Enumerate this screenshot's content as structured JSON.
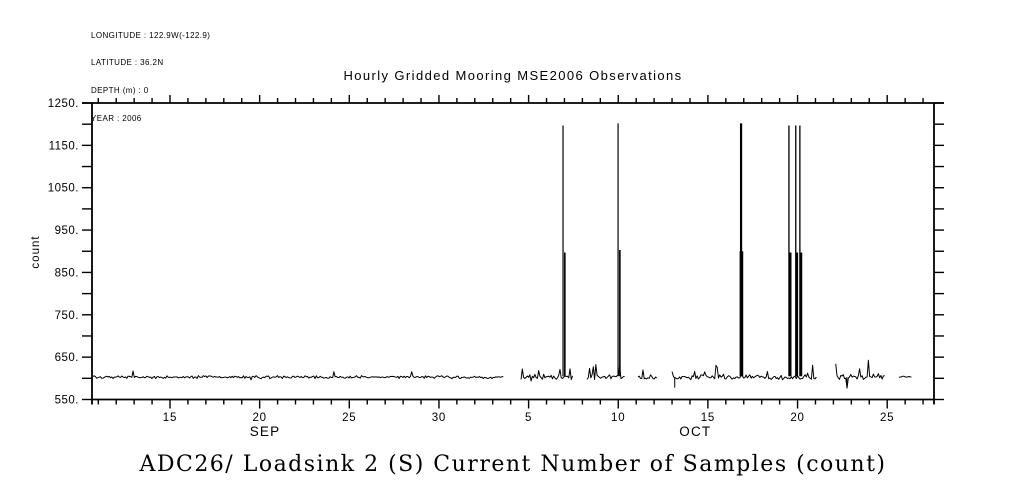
{
  "ink": "#000000",
  "background": "#ffffff",
  "metadata_block": {
    "lines": [
      "LONGITUDE : 122.9W(-122.9)",
      "LATITUDE : 36.2N",
      "DEPTH (m) : 0",
      "YEAR : 2006"
    ]
  },
  "title": "Hourly Gridded Mooring MSE2006 Observations",
  "caption": "ADC26/ Loadsink 2 (S) Current Number of Samples (count)",
  "chart_data": {
    "type": "line",
    "title": "Hourly Gridded Mooring MSE2006 Observations",
    "ylabel": "count",
    "ylim": [
      550,
      1250
    ],
    "y_minor_step": 50,
    "y_major_ticks": [
      {
        "v": 1250,
        "label": "1250."
      },
      {
        "v": 1150,
        "label": "1150."
      },
      {
        "v": 1050,
        "label": "1050."
      },
      {
        "v": 950,
        "label": "950."
      },
      {
        "v": 850,
        "label": "850."
      },
      {
        "v": 750,
        "label": "750."
      },
      {
        "v": 650,
        "label": "650."
      },
      {
        "v": 550,
        "label": "550."
      }
    ],
    "x_unit": "day (Sep 1 2006 = 1, Oct N = 30 + N)",
    "x_range_days": [
      10.65,
      57.6
    ],
    "x_minor_step": 1,
    "x_major_ticks": [
      {
        "d": 15,
        "label": "15"
      },
      {
        "d": 20,
        "label": "20"
      },
      {
        "d": 25,
        "label": "25"
      },
      {
        "d": 30,
        "label": "30"
      },
      {
        "d": 35,
        "label": "5"
      },
      {
        "d": 40,
        "label": "10"
      },
      {
        "d": 45,
        "label": "15"
      },
      {
        "d": 50,
        "label": "20"
      },
      {
        "d": 55,
        "label": "25"
      }
    ],
    "month_labels": [
      {
        "label": "SEP",
        "d": 20.3
      },
      {
        "label": "OCT",
        "d": 44.3
      }
    ],
    "baseline": 603,
    "segments": [
      {
        "d0": 10.7,
        "d1": 33.65,
        "amp": 4.5,
        "blip": 0.012,
        "blip_mag": 16
      },
      {
        "d0": 34.58,
        "d1": 37.48,
        "amp": 8,
        "blip": 0.1,
        "blip_mag": 28
      },
      {
        "d0": 38.26,
        "d1": 40.38,
        "amp": 8,
        "blip": 0.08,
        "blip_mag": 24
      },
      {
        "d0": 41.1,
        "d1": 42.16,
        "amp": 6,
        "blip": 0.16,
        "blip_mag": 26
      },
      {
        "d0": 43.0,
        "d1": 51.08,
        "amp": 7,
        "blip": 0.06,
        "blip_mag": 30
      },
      {
        "d0": 52.13,
        "d1": 54.92,
        "amp": 9,
        "blip": 0.18,
        "blip_mag": 42
      },
      {
        "d0": 55.65,
        "d1": 56.4,
        "amp": 4,
        "blip": 0.02,
        "blip_mag": 10
      }
    ],
    "spikes": [
      {
        "date": "Oct 7",
        "d": 36.92,
        "peak": 1197,
        "w": 1.2
      },
      {
        "date": "Oct 7",
        "d": 37.02,
        "peak": 897,
        "w": 1.6
      },
      {
        "date": "Oct 10",
        "d": 39.99,
        "peak": 1202,
        "w": 1.2
      },
      {
        "date": "Oct 10",
        "d": 40.09,
        "peak": 903,
        "w": 1.6
      },
      {
        "date": "Oct 17",
        "d": 46.85,
        "peak": 1202,
        "w": 2.2
      },
      {
        "date": "Oct 17",
        "d": 46.87,
        "peak": 900,
        "w": 3.6
      },
      {
        "date": "Oct 19.5",
        "d": 49.52,
        "peak": 1197,
        "w": 1.3
      },
      {
        "date": "Oct 19.5",
        "d": 49.6,
        "peak": 897,
        "w": 2.2
      },
      {
        "date": "Oct 20",
        "d": 49.9,
        "peak": 1197,
        "w": 1.3
      },
      {
        "date": "Oct 20",
        "d": 49.97,
        "peak": 897,
        "w": 2.2
      },
      {
        "date": "Oct 20",
        "d": 50.13,
        "peak": 1197,
        "w": 1.3
      },
      {
        "date": "Oct 20",
        "d": 50.2,
        "peak": 897,
        "w": 2.2
      }
    ],
    "notches": [
      {
        "d": 43.15,
        "v": 578
      },
      {
        "d": 52.75,
        "v": 588
      }
    ],
    "grid": false,
    "legend": "none"
  }
}
